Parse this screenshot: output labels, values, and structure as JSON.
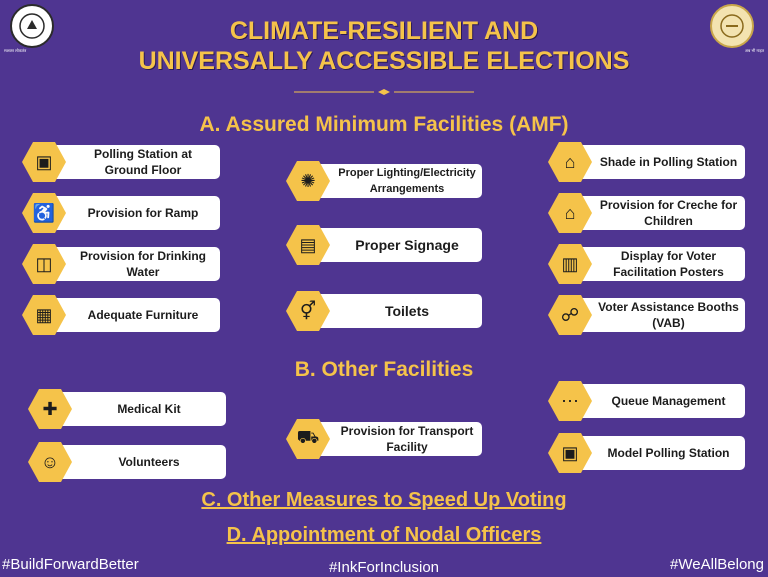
{
  "title": {
    "line1": "CLIMATE-RESILIENT AND",
    "line2": "UNIVERSALLY ACCESSIBLE ELECTIONS"
  },
  "logos": {
    "left_caption": "सशक्त लोकतंत्र",
    "right_caption": "अब भी नाहत"
  },
  "colors": {
    "background": "#4f3591",
    "accent": "#f5c34a",
    "card": "#ffffff"
  },
  "sections": {
    "a": "A. Assured Minimum Facilities (AMF)",
    "b": "B. Other Facilities",
    "c": "C. Other Measures to Speed Up Voting",
    "d": "D. Appointment of Nodal Officers"
  },
  "amf": {
    "polling_station": "Polling Station at Ground Floor",
    "ramp": "Provision for Ramp",
    "drinking_water": "Provision for Drinking Water",
    "furniture": "Adequate Furniture",
    "lighting": "Proper Lighting/Electricity Arrangements",
    "signage": "Proper Signage",
    "toilets": "Toilets",
    "shade": "Shade in Polling Station",
    "creche": "Provision for Creche for Children",
    "posters": "Display for Voter Facilitation Posters",
    "vab": "Voter Assistance Booths (VAB)"
  },
  "other": {
    "medical_kit": "Medical Kit",
    "volunteers": "Volunteers",
    "transport": "Provision for Transport Facility",
    "queue": "Queue Management",
    "model_station": "Model Polling Station"
  },
  "icons": {
    "polling_station": "polling-booth-icon",
    "ramp": "wheelchair-ramp-icon",
    "drinking_water": "water-glass-icon",
    "furniture": "chairs-icon",
    "lighting": "light-bulb-icon",
    "signage": "signboard-icon",
    "toilets": "restroom-icon",
    "shade": "tent-icon",
    "creche": "house-icon",
    "posters": "poster-icon",
    "vab": "assistance-booth-icon",
    "medical_kit": "first-aid-icon",
    "volunteers": "people-icon",
    "transport": "auto-rickshaw-icon",
    "queue": "queue-icon",
    "model_station": "model-station-icon"
  },
  "hashtags": {
    "left": "#BuildForwardBetter",
    "center": "#InkForInclusion",
    "right": "#WeAllBelong"
  }
}
